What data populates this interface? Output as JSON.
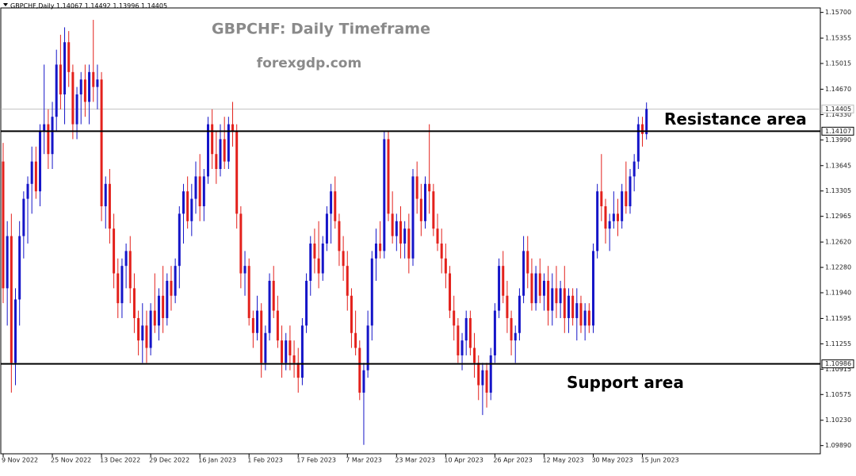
{
  "chart_data": {
    "type": "candlestick",
    "symbol": "GBPCHF,Daily",
    "title": "GBPCHF: Daily Timeframe",
    "subtitle": "forexgdp.com",
    "up_color": "#1515c8",
    "down_color": "#e3211c",
    "ylim": [
      1.0978,
      1.1576
    ],
    "yticks": [
      {
        "value": 1.157,
        "label": "1.15700"
      },
      1.15355,
      1.15015,
      {
        "value": 1.1467,
        "label": "1.14670"
      },
      {
        "value": 1.1433,
        "label": "1.14330"
      },
      {
        "value": 1.1399,
        "label": "1.13990"
      },
      1.13645,
      1.13305,
      1.12965,
      {
        "value": 1.1262,
        "label": "1.12620"
      },
      {
        "value": 1.1228,
        "label": "1.12280"
      },
      {
        "value": 1.1194,
        "label": "1.11940"
      },
      1.11595,
      1.11255,
      1.10915,
      1.10575,
      {
        "value": 1.1023,
        "label": "1.10230"
      },
      {
        "value": 1.0989,
        "label": "1.09890"
      }
    ],
    "levels": [
      {
        "value": 1.14107,
        "label": "Resistance area"
      },
      {
        "value": 1.10986,
        "label": "Support area"
      }
    ],
    "categories": [
      "9 Nov 2022",
      null,
      null,
      null,
      null,
      null,
      null,
      null,
      null,
      null,
      null,
      null,
      "25 Nov 2022",
      null,
      null,
      null,
      null,
      null,
      null,
      null,
      null,
      null,
      null,
      null,
      "13 Dec 2022",
      null,
      null,
      null,
      null,
      null,
      null,
      null,
      null,
      null,
      null,
      null,
      "29 Dec 2022",
      null,
      null,
      null,
      null,
      null,
      null,
      null,
      null,
      null,
      null,
      null,
      "16 Jan 2023",
      null,
      null,
      null,
      null,
      null,
      null,
      null,
      null,
      null,
      null,
      null,
      "1 Feb 2023",
      null,
      null,
      null,
      null,
      null,
      null,
      null,
      null,
      null,
      null,
      null,
      "17 Feb 2023",
      null,
      null,
      null,
      null,
      null,
      null,
      null,
      null,
      null,
      null,
      null,
      "7 Mar 2023",
      null,
      null,
      null,
      null,
      null,
      null,
      null,
      null,
      null,
      null,
      null,
      "23 Mar 2023",
      null,
      null,
      null,
      null,
      null,
      null,
      null,
      null,
      null,
      null,
      null,
      "10 Apr 2023",
      null,
      null,
      null,
      null,
      null,
      null,
      null,
      null,
      null,
      null,
      null,
      "26 Apr 2023",
      null,
      null,
      null,
      null,
      null,
      null,
      null,
      null,
      null,
      null,
      null,
      "12 May 2023",
      null,
      null,
      null,
      null,
      null,
      null,
      null,
      null,
      null,
      null,
      null,
      "30 May 2023",
      null,
      null,
      null,
      null,
      null,
      null,
      null,
      null,
      null,
      null,
      null,
      "15 Jun 2023",
      null
    ],
    "ohlc": [
      [
        1.137,
        1.1395,
        1.118,
        1.12
      ],
      [
        1.12,
        1.129,
        1.115,
        1.127
      ],
      [
        1.127,
        1.13,
        1.106,
        1.11
      ],
      [
        1.11,
        1.12,
        1.107,
        1.1185
      ],
      [
        1.1185,
        1.129,
        1.115,
        1.127
      ],
      [
        1.127,
        1.133,
        1.124,
        1.132
      ],
      [
        1.132,
        1.135,
        1.126,
        1.134
      ],
      [
        1.134,
        1.139,
        1.13,
        1.137
      ],
      [
        1.137,
        1.139,
        1.132,
        1.133
      ],
      [
        1.133,
        1.142,
        1.131,
        1.141
      ],
      [
        1.141,
        1.15,
        1.138,
        1.142
      ],
      [
        1.142,
        1.144,
        1.136,
        1.138
      ],
      [
        1.138,
        1.145,
        1.136,
        1.143
      ],
      [
        1.143,
        1.152,
        1.141,
        1.15
      ],
      [
        1.15,
        1.154,
        1.144,
        1.146
      ],
      [
        1.146,
        1.155,
        1.142,
        1.153
      ],
      [
        1.153,
        1.1545,
        1.147,
        1.149
      ],
      [
        1.149,
        1.15,
        1.14,
        1.142
      ],
      [
        1.142,
        1.147,
        1.14,
        1.146
      ],
      [
        1.146,
        1.149,
        1.142,
        1.148
      ],
      [
        1.148,
        1.15,
        1.143,
        1.145
      ],
      [
        1.145,
        1.15,
        1.142,
        1.149
      ],
      [
        1.149,
        1.156,
        1.145,
        1.147
      ],
      [
        1.147,
        1.15,
        1.144,
        1.148
      ],
      [
        1.148,
        1.149,
        1.129,
        1.131
      ],
      [
        1.131,
        1.135,
        1.128,
        1.134
      ],
      [
        1.134,
        1.136,
        1.126,
        1.128
      ],
      [
        1.128,
        1.13,
        1.12,
        1.122
      ],
      [
        1.122,
        1.124,
        1.116,
        1.118
      ],
      [
        1.118,
        1.124,
        1.116,
        1.123
      ],
      [
        1.123,
        1.126,
        1.12,
        1.125
      ],
      [
        1.125,
        1.127,
        1.118,
        1.12
      ],
      [
        1.12,
        1.122,
        1.114,
        1.116
      ],
      [
        1.116,
        1.117,
        1.111,
        1.113
      ],
      [
        1.113,
        1.118,
        1.11,
        1.115
      ],
      [
        1.115,
        1.117,
        1.11,
        1.112
      ],
      [
        1.112,
        1.118,
        1.111,
        1.117
      ],
      [
        1.117,
        1.122,
        1.114,
        1.115
      ],
      [
        1.115,
        1.12,
        1.113,
        1.119
      ],
      [
        1.119,
        1.123,
        1.114,
        1.116
      ],
      [
        1.116,
        1.122,
        1.115,
        1.121
      ],
      [
        1.121,
        1.123,
        1.117,
        1.119
      ],
      [
        1.119,
        1.124,
        1.118,
        1.123
      ],
      [
        1.123,
        1.131,
        1.12,
        1.13
      ],
      [
        1.13,
        1.134,
        1.126,
        1.133
      ],
      [
        1.133,
        1.135,
        1.128,
        1.129
      ],
      [
        1.129,
        1.134,
        1.127,
        1.132
      ],
      [
        1.132,
        1.137,
        1.13,
        1.135
      ],
      [
        1.135,
        1.138,
        1.129,
        1.131
      ],
      [
        1.131,
        1.136,
        1.129,
        1.135
      ],
      [
        1.135,
        1.143,
        1.134,
        1.142
      ],
      [
        1.142,
        1.144,
        1.136,
        1.138
      ],
      [
        1.138,
        1.141,
        1.134,
        1.136
      ],
      [
        1.136,
        1.142,
        1.135,
        1.14
      ],
      [
        1.14,
        1.143,
        1.136,
        1.137
      ],
      [
        1.137,
        1.143,
        1.136,
        1.142
      ],
      [
        1.142,
        1.145,
        1.139,
        1.141
      ],
      [
        1.141,
        1.142,
        1.128,
        1.13
      ],
      [
        1.13,
        1.131,
        1.12,
        1.122
      ],
      [
        1.122,
        1.125,
        1.119,
        1.123
      ],
      [
        1.123,
        1.124,
        1.115,
        1.116
      ],
      [
        1.116,
        1.117,
        1.112,
        1.114
      ],
      [
        1.114,
        1.119,
        1.113,
        1.117
      ],
      [
        1.117,
        1.118,
        1.108,
        1.11
      ],
      [
        1.11,
        1.115,
        1.109,
        1.114
      ],
      [
        1.114,
        1.122,
        1.113,
        1.121
      ],
      [
        1.121,
        1.123,
        1.116,
        1.117
      ],
      [
        1.117,
        1.119,
        1.112,
        1.113
      ],
      [
        1.113,
        1.115,
        1.108,
        1.11
      ],
      [
        1.11,
        1.114,
        1.109,
        1.113
      ],
      [
        1.113,
        1.115,
        1.109,
        1.111
      ],
      [
        1.111,
        1.113,
        1.108,
        1.11
      ],
      [
        1.11,
        1.112,
        1.106,
        1.108
      ],
      [
        1.108,
        1.116,
        1.107,
        1.115
      ],
      [
        1.115,
        1.122,
        1.114,
        1.121
      ],
      [
        1.121,
        1.127,
        1.119,
        1.126
      ],
      [
        1.126,
        1.128,
        1.122,
        1.124
      ],
      [
        1.124,
        1.129,
        1.12,
        1.122
      ],
      [
        1.122,
        1.127,
        1.121,
        1.126
      ],
      [
        1.126,
        1.131,
        1.125,
        1.13
      ],
      [
        1.13,
        1.134,
        1.126,
        1.133
      ],
      [
        1.133,
        1.135,
        1.128,
        1.129
      ],
      [
        1.129,
        1.13,
        1.123,
        1.125
      ],
      [
        1.125,
        1.127,
        1.121,
        1.123
      ],
      [
        1.123,
        1.125,
        1.117,
        1.119
      ],
      [
        1.119,
        1.12,
        1.112,
        1.114
      ],
      [
        1.114,
        1.117,
        1.111,
        1.112
      ],
      [
        1.112,
        1.113,
        1.105,
        1.106
      ],
      [
        1.106,
        1.11,
        1.099,
        1.109
      ],
      [
        1.109,
        1.117,
        1.108,
        1.115
      ],
      [
        1.115,
        1.125,
        1.113,
        1.124
      ],
      [
        1.124,
        1.128,
        1.121,
        1.126
      ],
      [
        1.126,
        1.129,
        1.124,
        1.125
      ],
      [
        1.125,
        1.141,
        1.124,
        1.14
      ],
      [
        1.14,
        1.141,
        1.129,
        1.13
      ],
      [
        1.13,
        1.133,
        1.126,
        1.127
      ],
      [
        1.127,
        1.13,
        1.125,
        1.129
      ],
      [
        1.129,
        1.131,
        1.124,
        1.126
      ],
      [
        1.126,
        1.129,
        1.124,
        1.128
      ],
      [
        1.128,
        1.13,
        1.122,
        1.124
      ],
      [
        1.124,
        1.136,
        1.123,
        1.135
      ],
      [
        1.135,
        1.137,
        1.13,
        1.132
      ],
      [
        1.132,
        1.134,
        1.127,
        1.129
      ],
      [
        1.129,
        1.135,
        1.128,
        1.134
      ],
      [
        1.134,
        1.142,
        1.13,
        1.133
      ],
      [
        1.133,
        1.134,
        1.127,
        1.128
      ],
      [
        1.128,
        1.13,
        1.125,
        1.126
      ],
      [
        1.126,
        1.128,
        1.122,
        1.124
      ],
      [
        1.124,
        1.126,
        1.12,
        1.122
      ],
      [
        1.122,
        1.123,
        1.116,
        1.117
      ],
      [
        1.117,
        1.119,
        1.113,
        1.115
      ],
      [
        1.115,
        1.116,
        1.11,
        1.111
      ],
      [
        1.111,
        1.114,
        1.109,
        1.113
      ],
      [
        1.113,
        1.117,
        1.111,
        1.116
      ],
      [
        1.116,
        1.117,
        1.111,
        1.112
      ],
      [
        1.112,
        1.114,
        1.108,
        1.11
      ],
      [
        1.11,
        1.111,
        1.105,
        1.107
      ],
      [
        1.107,
        1.11,
        1.103,
        1.109
      ],
      [
        1.109,
        1.11,
        1.104,
        1.106
      ],
      [
        1.106,
        1.112,
        1.105,
        1.111
      ],
      [
        1.111,
        1.118,
        1.11,
        1.117
      ],
      [
        1.117,
        1.124,
        1.116,
        1.123
      ],
      [
        1.123,
        1.125,
        1.118,
        1.119
      ],
      [
        1.119,
        1.121,
        1.114,
        1.116
      ],
      [
        1.116,
        1.117,
        1.111,
        1.113
      ],
      [
        1.113,
        1.115,
        1.11,
        1.114
      ],
      [
        1.114,
        1.12,
        1.113,
        1.119
      ],
      [
        1.119,
        1.127,
        1.118,
        1.125
      ],
      [
        1.125,
        1.127,
        1.12,
        1.122
      ],
      [
        1.122,
        1.124,
        1.117,
        1.118
      ],
      [
        1.118,
        1.123,
        1.117,
        1.122
      ],
      [
        1.122,
        1.124,
        1.118,
        1.119
      ],
      [
        1.119,
        1.122,
        1.117,
        1.121
      ],
      [
        1.121,
        1.123,
        1.115,
        1.117
      ],
      [
        1.117,
        1.122,
        1.115,
        1.12
      ],
      [
        1.12,
        1.123,
        1.116,
        1.118
      ],
      [
        1.118,
        1.121,
        1.116,
        1.12
      ],
      [
        1.12,
        1.123,
        1.114,
        1.116
      ],
      [
        1.116,
        1.12,
        1.114,
        1.119
      ],
      [
        1.119,
        1.12,
        1.115,
        1.116
      ],
      [
        1.116,
        1.12,
        1.113,
        1.118
      ],
      [
        1.118,
        1.119,
        1.114,
        1.115
      ],
      [
        1.115,
        1.118,
        1.113,
        1.117
      ],
      [
        1.117,
        1.118,
        1.114,
        1.115
      ],
      [
        1.115,
        1.126,
        1.114,
        1.125
      ],
      [
        1.125,
        1.134,
        1.124,
        1.133
      ],
      [
        1.133,
        1.138,
        1.129,
        1.131
      ],
      [
        1.131,
        1.132,
        1.126,
        1.128
      ],
      [
        1.128,
        1.13,
        1.125,
        1.129
      ],
      [
        1.129,
        1.133,
        1.128,
        1.13
      ],
      [
        1.13,
        1.132,
        1.127,
        1.129
      ],
      [
        1.129,
        1.134,
        1.128,
        1.133
      ],
      [
        1.133,
        1.137,
        1.13,
        1.131
      ],
      [
        1.131,
        1.136,
        1.13,
        1.135
      ],
      [
        1.135,
        1.138,
        1.133,
        1.137
      ],
      [
        1.137,
        1.143,
        1.136,
        1.142
      ],
      [
        1.142,
        1.143,
        1.139,
        1.1407
      ],
      [
        1.14067,
        1.14492,
        1.13996,
        1.14405
      ]
    ]
  }
}
